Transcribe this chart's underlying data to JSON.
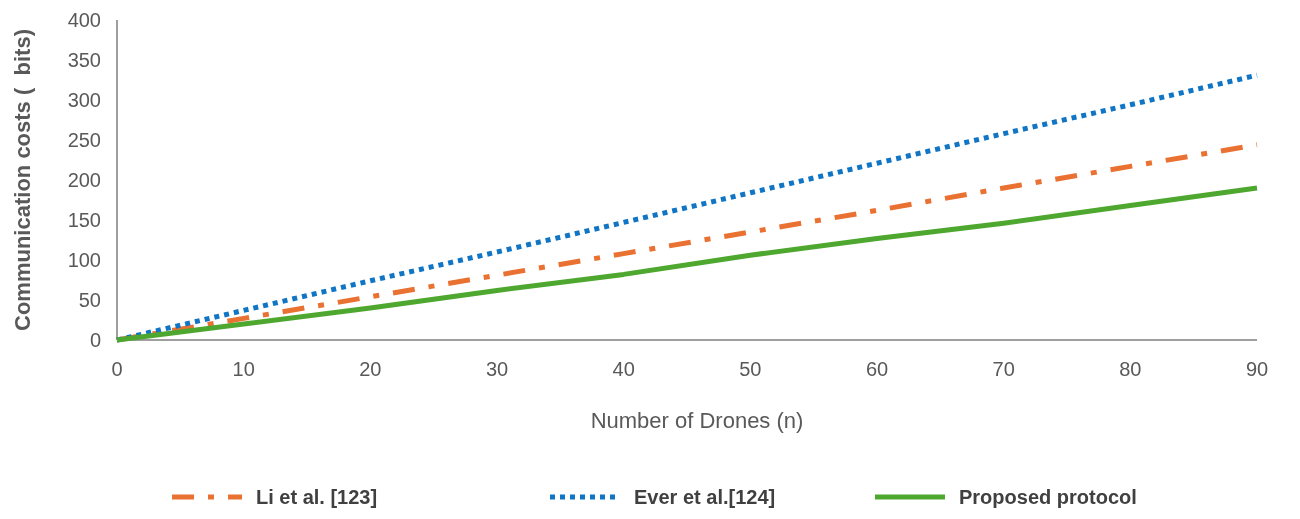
{
  "chart_data": {
    "type": "line",
    "xlabel": "Number of Drones (n)",
    "ylabel": "Communication costs (  bits)",
    "x": [
      0,
      10,
      20,
      30,
      40,
      50,
      60,
      70,
      80,
      90
    ],
    "series": [
      {
        "name": "Li et al. [123]",
        "color": "#e97132",
        "line_style": "dashed",
        "values": [
          0,
          27,
          54,
          81,
          108,
          135,
          162,
          190,
          217,
          244
        ]
      },
      {
        "name": "Ever et al.[124]",
        "color": "#0f75c4",
        "line_style": "dotted",
        "values": [
          0,
          37,
          74,
          110,
          147,
          184,
          221,
          258,
          294,
          331
        ]
      },
      {
        "name": "Proposed protocol",
        "color": "#4ea72e",
        "line_style": "solid",
        "values": [
          0,
          20,
          40,
          62,
          82,
          106,
          127,
          146,
          168,
          190
        ]
      }
    ],
    "xlim": [
      0,
      90
    ],
    "xticks": [
      0,
      10,
      20,
      30,
      40,
      50,
      60,
      70,
      80,
      90
    ],
    "ylim": [
      0,
      400
    ],
    "yticks": [
      0,
      50,
      100,
      150,
      200,
      250,
      300,
      350,
      400
    ],
    "grid": false,
    "legend": "bottom",
    "marker": "none"
  }
}
